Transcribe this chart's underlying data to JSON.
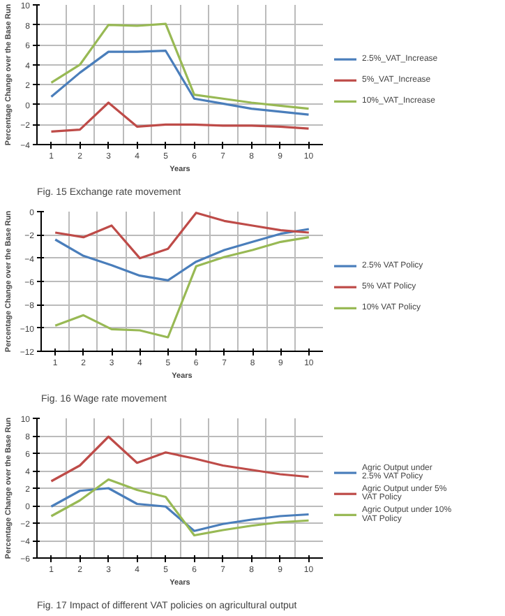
{
  "chart_data": [
    {
      "type": "line",
      "xlabel": "Years",
      "ylabel": "Percentage Change over the Base Run",
      "annotations": [
        "Fig. 15 Exchange rate movement"
      ],
      "categories": [
        "1",
        "2",
        "3",
        "4",
        "5",
        "6",
        "7",
        "8",
        "9",
        "10"
      ],
      "ylim": [
        -4,
        10
      ],
      "yticks": [
        -4,
        -2,
        0,
        2,
        4,
        6,
        8,
        10
      ],
      "grid": true,
      "legend": "right",
      "marker": "none",
      "line_style": "solid",
      "series": [
        {
          "name": "2.5%_VAT_Increase",
          "color": "#4a7ebb",
          "values": [
            0.8,
            3.2,
            5.3,
            5.3,
            5.4,
            0.6,
            0.1,
            -0.4,
            -0.7,
            -1.0
          ]
        },
        {
          "name": "5%_VAT_Increase",
          "color": "#be4b48",
          "values": [
            -2.7,
            -2.5,
            0.2,
            -2.2,
            -2.0,
            -2.0,
            -2.1,
            -2.1,
            -2.2,
            -2.4
          ]
        },
        {
          "name": "10%_VAT_Increase",
          "color": "#98b954",
          "values": [
            2.2,
            4.0,
            8.0,
            7.9,
            8.1,
            1.0,
            0.6,
            0.2,
            -0.1,
            -0.4
          ]
        }
      ]
    },
    {
      "type": "line",
      "xlabel": "Years",
      "ylabel": "Percentage Change over the Base Run",
      "annotations": [
        "Fig. 16 Wage rate movement"
      ],
      "categories": [
        "1",
        "2",
        "3",
        "4",
        "5",
        "6",
        "7",
        "8",
        "9",
        "10"
      ],
      "ylim": [
        -12,
        0
      ],
      "yticks": [
        -12,
        -10,
        -8,
        -6,
        -4,
        -2,
        0
      ],
      "grid": true,
      "legend": "right",
      "marker": "none",
      "line_style": "solid",
      "series": [
        {
          "name": "2.5% VAT Policy",
          "color": "#4a7ebb",
          "values": [
            -2.4,
            -3.8,
            -4.6,
            -5.5,
            -5.9,
            -4.3,
            -3.3,
            -2.6,
            -1.9,
            -1.5
          ]
        },
        {
          "name": "5% VAT Policy",
          "color": "#be4b48",
          "values": [
            -1.8,
            -2.2,
            -1.2,
            -4.0,
            -3.2,
            -0.1,
            -0.8,
            -1.2,
            -1.6,
            -1.8
          ]
        },
        {
          "name": "10% VAT Policy",
          "color": "#98b954",
          "values": [
            -9.8,
            -8.9,
            -10.1,
            -10.2,
            -10.8,
            -4.7,
            -3.9,
            -3.3,
            -2.6,
            -2.2
          ]
        }
      ]
    },
    {
      "type": "line",
      "xlabel": "Years",
      "ylabel": "Percentage Change over the Base Run",
      "annotations": [
        "Fig. 17 Impact of different VAT policies on agricultural output"
      ],
      "categories": [
        "1",
        "2",
        "3",
        "4",
        "5",
        "6",
        "7",
        "8",
        "9",
        "10"
      ],
      "ylim": [
        -6,
        10
      ],
      "yticks": [
        -6,
        -4,
        -2,
        0,
        2,
        4,
        6,
        8,
        10
      ],
      "grid": true,
      "legend": "right",
      "marker": "none",
      "line_style": "solid",
      "series": [
        {
          "name": "Agric Output under 2.5% VAT Policy",
          "color": "#4a7ebb",
          "values": [
            -0.1,
            1.7,
            2.0,
            0.2,
            -0.1,
            -2.9,
            -2.1,
            -1.6,
            -1.2,
            -1.0
          ]
        },
        {
          "name": "Agric Output under 5% VAT Policy",
          "color": "#be4b48",
          "values": [
            2.8,
            4.6,
            7.9,
            4.9,
            6.1,
            5.4,
            4.6,
            4.1,
            3.6,
            3.3
          ]
        },
        {
          "name": "Agric Output under 10% VAT Policy",
          "color": "#98b954",
          "values": [
            -1.2,
            0.6,
            3.0,
            1.8,
            1.0,
            -3.4,
            -2.8,
            -2.3,
            -1.9,
            -1.7
          ]
        }
      ]
    }
  ]
}
